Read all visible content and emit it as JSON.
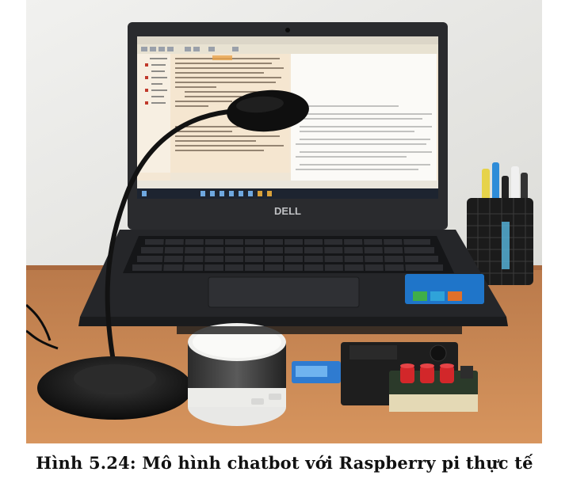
{
  "figure": {
    "caption": "Hình 5.24: Mô hình chatbot với Raspberry pi thực tế",
    "photo_description": "Laptop Dell with microphone, speaker, USB sound card and Raspberry Pi board",
    "laptop_brand": "DELL",
    "palette": {
      "wall": "#e9e9e7",
      "desk": "#c78752",
      "laptop": "#2a2b2e",
      "screen_bg": "#f4e7d4",
      "editor_accent": "#e8a24a",
      "taskbar": "#1d2430",
      "speaker_top": "#f0f0ee",
      "pi_case": "#1e1e1e",
      "buttons_red": "#d2272a",
      "usb_blue": "#2f7bd0",
      "sticker_blue": "#1f75c9"
    }
  }
}
